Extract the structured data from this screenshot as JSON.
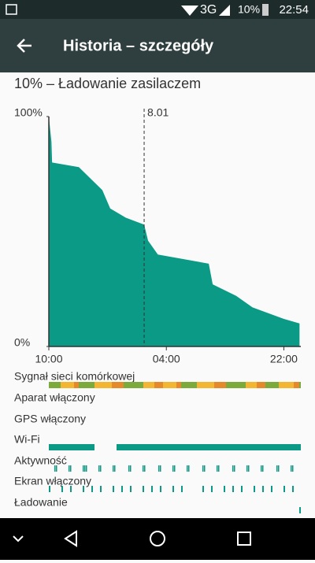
{
  "status_bar": {
    "network": "3G",
    "battery": "10%",
    "time": "22:54"
  },
  "header": {
    "title": "Historia – szczegóły"
  },
  "summary": "10% – Ładowanie zasilaczem",
  "chart_data": {
    "type": "area",
    "x": [
      0,
      0.4,
      0.5,
      4.6,
      6.4,
      8.2,
      9.4,
      11.8,
      14.6,
      15.2,
      16.7,
      24.5,
      25.1,
      28.7,
      31.2,
      36,
      38.4
    ],
    "values": [
      100,
      89,
      80,
      78,
      73,
      68,
      60,
      56,
      53,
      46,
      40,
      36,
      27,
      22,
      17,
      12,
      10
    ],
    "color": "#0a9a86",
    "xlim": [
      0,
      38.6
    ],
    "xticks": [
      {
        "value": 0,
        "label": "10:00"
      },
      {
        "value": 18,
        "label": "04:00"
      },
      {
        "value": 36,
        "label": "22:00"
      }
    ],
    "ylim": [
      0,
      100
    ],
    "yticks": [
      {
        "value": 0,
        "label": "0%"
      },
      {
        "value": 100,
        "label": "100%"
      }
    ],
    "date_marker": {
      "label": "8.01",
      "x": 14.6
    }
  },
  "rows": [
    "Sygnał sieci komórkowej",
    "Aparat włączony",
    "GPS włączony",
    "Wi-Fi",
    "Aktywność",
    "Ekran włączony",
    "Ładowanie"
  ]
}
